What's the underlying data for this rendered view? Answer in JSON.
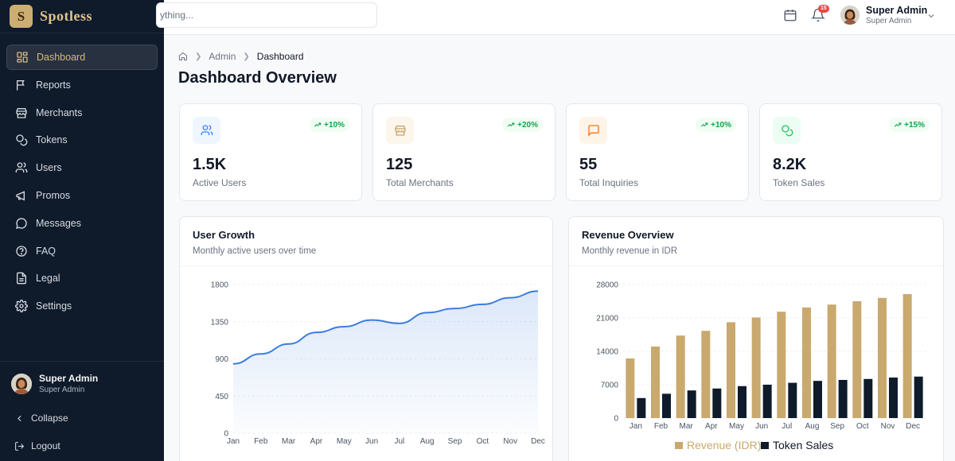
{
  "brand": {
    "logo_letter": "S",
    "name": "Spotless"
  },
  "sidebar": {
    "items": [
      {
        "label": "Dashboard",
        "icon": "dashboard-grid-icon",
        "active": true
      },
      {
        "label": "Reports",
        "icon": "flag-icon"
      },
      {
        "label": "Merchants",
        "icon": "store-icon"
      },
      {
        "label": "Tokens",
        "icon": "coins-icon"
      },
      {
        "label": "Users",
        "icon": "users-icon"
      },
      {
        "label": "Promos",
        "icon": "megaphone-icon"
      },
      {
        "label": "Messages",
        "icon": "message-circle-icon"
      },
      {
        "label": "FAQ",
        "icon": "help-circle-icon"
      },
      {
        "label": "Legal",
        "icon": "document-icon"
      },
      {
        "label": "Settings",
        "icon": "gear-icon"
      }
    ],
    "user": {
      "name": "Super Admin",
      "role": "Super Admin"
    },
    "collapse_label": "Collapse",
    "logout_label": "Logout"
  },
  "topbar": {
    "search_placeholder": "ything...",
    "notification_count": "15",
    "user": {
      "name": "Super Admin",
      "role": "Super Admin"
    }
  },
  "breadcrumb": {
    "admin": "Admin",
    "current": "Dashboard"
  },
  "page_title": "Dashboard Overview",
  "stats": [
    {
      "value": "1.5K",
      "label": "Active Users",
      "trend": "+10%",
      "icon": "users-icon",
      "bg": "#eff6ff",
      "color": "#3b82f6"
    },
    {
      "value": "125",
      "label": "Total Merchants",
      "trend": "+20%",
      "icon": "store-icon",
      "bg": "#fdf6ec",
      "color": "#c9a46a"
    },
    {
      "value": "55",
      "label": "Total Inquiries",
      "trend": "+10%",
      "icon": "message-square-icon",
      "bg": "#fff4e8",
      "color": "#f97316"
    },
    {
      "value": "8.2K",
      "label": "Token Sales",
      "trend": "+15%",
      "icon": "coins-icon",
      "bg": "#ecfdf3",
      "color": "#22c55e"
    }
  ],
  "user_growth": {
    "title": "User Growth",
    "subtitle": "Monthly active users over time"
  },
  "revenue": {
    "title": "Revenue Overview",
    "subtitle": "Monthly revenue in IDR"
  },
  "colors": {
    "accent": "#d8b97c",
    "line": "#3b7ddd",
    "revenue_bar": "#c9a96e",
    "token_bar": "#0f1b2b"
  },
  "chart_data": [
    {
      "type": "area",
      "categories": [
        "Jan",
        "Feb",
        "Mar",
        "Apr",
        "May",
        "Jun",
        "Jul",
        "Aug",
        "Sep",
        "Oct",
        "Nov",
        "Dec"
      ],
      "series": [
        {
          "values": [
            840,
            960,
            1080,
            1220,
            1290,
            1370,
            1330,
            1460,
            1510,
            1560,
            1640,
            1720
          ]
        }
      ],
      "yticks": [
        0,
        450,
        900,
        1350,
        1800
      ],
      "ylim": [
        0,
        1800
      ],
      "grid": true
    },
    {
      "type": "bar",
      "categories": [
        "Jan",
        "Feb",
        "Mar",
        "Apr",
        "May",
        "Jun",
        "Jul",
        "Aug",
        "Sep",
        "Oct",
        "Nov",
        "Dec"
      ],
      "series": [
        {
          "name": "Revenue (IDR)",
          "values": [
            12500,
            15000,
            17300,
            18300,
            20100,
            21100,
            22300,
            23200,
            23800,
            24500,
            25200,
            26000
          ]
        },
        {
          "name": "Token Sales",
          "values": [
            4200,
            5100,
            5800,
            6200,
            6700,
            7000,
            7400,
            7800,
            8000,
            8200,
            8500,
            8700
          ]
        }
      ],
      "yticks": [
        0,
        7000,
        14000,
        21000,
        28000
      ],
      "ylim": [
        0,
        28000
      ],
      "legend": "bottom"
    }
  ]
}
